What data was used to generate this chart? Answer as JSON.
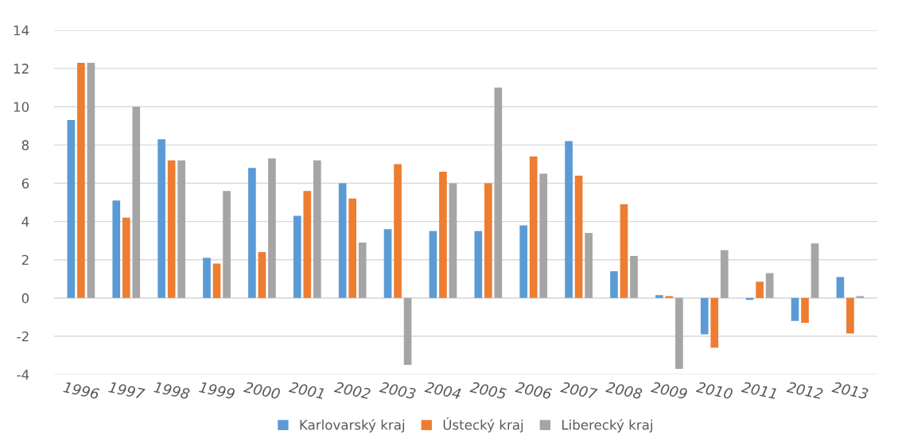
{
  "chart_data": {
    "type": "bar",
    "categories": [
      "1996",
      "1997",
      "1998",
      "1999",
      "2000",
      "2001",
      "2002",
      "2003",
      "2004",
      "2005",
      "2006",
      "2007",
      "2008",
      "2009",
      "2010",
      "2011",
      "2012",
      "2013"
    ],
    "series": [
      {
        "name": "Karlovarský kraj",
        "color": "#5b9bd5",
        "values": [
          9.3,
          5.1,
          8.3,
          2.1,
          6.8,
          4.3,
          6.0,
          3.6,
          3.5,
          3.5,
          3.8,
          8.2,
          1.4,
          0.15,
          -1.9,
          -0.1,
          -1.2,
          1.1
        ]
      },
      {
        "name": "Ústecký kraj",
        "color": "#ed7d31",
        "values": [
          12.3,
          4.2,
          7.2,
          1.8,
          2.4,
          5.6,
          5.2,
          7.0,
          6.6,
          6.0,
          7.4,
          6.4,
          4.9,
          0.1,
          -2.6,
          0.85,
          -1.3,
          -1.85
        ]
      },
      {
        "name": "Liberecký kraj",
        "color": "#a5a5a5",
        "values": [
          12.3,
          10.0,
          7.2,
          5.6,
          7.3,
          7.2,
          2.9,
          -3.5,
          6.0,
          11.0,
          6.5,
          3.4,
          2.2,
          -3.7,
          2.5,
          1.3,
          2.85,
          0.1
        ]
      }
    ],
    "ylim": [
      -4,
      14
    ],
    "yticks": [
      -4,
      -2,
      0,
      2,
      4,
      6,
      8,
      10,
      12,
      14
    ],
    "grid": "y",
    "legend": "bottom"
  }
}
